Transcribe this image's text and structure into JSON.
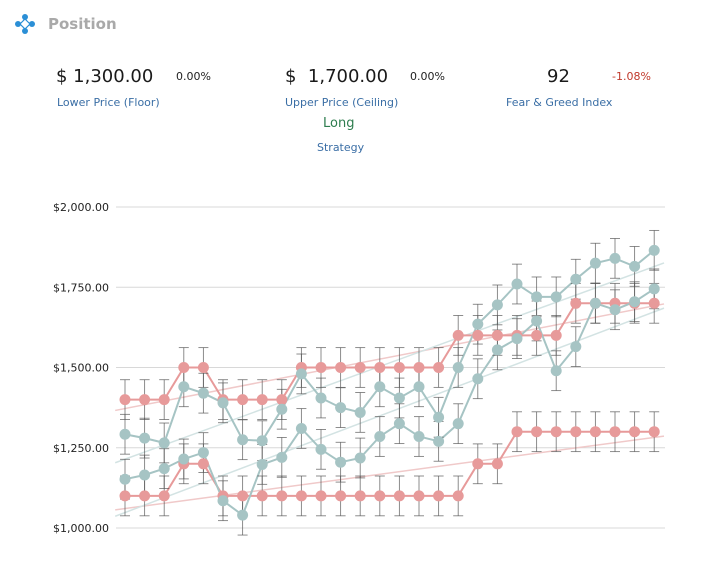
{
  "header": {
    "title": "Position",
    "logo_icon": "diamond-dots-logo-icon"
  },
  "stats": {
    "lower": {
      "value": "$ 1,300.00",
      "change": "0.00%",
      "label": "Lower Price (Floor)"
    },
    "upper": {
      "value": "$  1,700.00",
      "change": "0.00%",
      "label": "Upper Price (Ceiling)"
    },
    "fear_greed": {
      "value": "92",
      "change": "-1.08%",
      "label": "Fear & Greed Index"
    }
  },
  "strategy": {
    "value": "Long",
    "label": "Strategy"
  },
  "colors": {
    "red_series": "#e79a9a",
    "teal_series": "#a6c4c4",
    "red_trend": "#f0c9c9",
    "teal_trend": "#d3e3e3",
    "error_bar": "#555555",
    "grid": "#d8d8d8",
    "accent_blue": "#3a6ea5",
    "positive_green": "#2e7d4f",
    "negative_red": "#c0392b"
  },
  "chart_data": {
    "type": "line",
    "ylim": [
      1000,
      2000
    ],
    "yticks": [
      "$1,000.00",
      "$1,250.00",
      "$1,500.00",
      "$1,750.00",
      "$2,000.00"
    ],
    "ytick_values": [
      1000,
      1250,
      1500,
      1750,
      2000
    ],
    "x": [
      1,
      2,
      3,
      4,
      5,
      6,
      7,
      8,
      9,
      10,
      11,
      12,
      13,
      14,
      15,
      16,
      17,
      18,
      19,
      20,
      21,
      22,
      23,
      24,
      25,
      26,
      27,
      28
    ],
    "error": 62,
    "series": [
      {
        "color": "red",
        "values": [
          1400,
          1400,
          1400,
          1500,
          1500,
          1400,
          1400,
          1400,
          1400,
          1500,
          1500,
          1500,
          1500,
          1500,
          1500,
          1500,
          1500,
          1600,
          1600,
          1600,
          1600,
          1600,
          1600,
          1700,
          1700,
          1700,
          1700,
          1700
        ]
      },
      {
        "color": "red",
        "values": [
          1100,
          1100,
          1100,
          1200,
          1200,
          1100,
          1100,
          1100,
          1100,
          1100,
          1100,
          1100,
          1100,
          1100,
          1100,
          1100,
          1100,
          1100,
          1200,
          1200,
          1300,
          1300,
          1300,
          1300,
          1300,
          1300,
          1300,
          1300
        ]
      },
      {
        "color": "teal",
        "values": [
          1292,
          1280,
          1265,
          1440,
          1420,
          1390,
          1275,
          1272,
          1370,
          1480,
          1405,
          1375,
          1360,
          1440,
          1405,
          1440,
          1345,
          1500,
          1635,
          1695,
          1760,
          1720,
          1720,
          1775,
          1825,
          1840,
          1815,
          1865
        ]
      },
      {
        "color": "teal",
        "values": [
          1152,
          1165,
          1185,
          1215,
          1235,
          1085,
          1040,
          1198,
          1220,
          1310,
          1245,
          1205,
          1218,
          1285,
          1325,
          1285,
          1270,
          1325,
          1465,
          1555,
          1590,
          1645,
          1490,
          1565,
          1700,
          1680,
          1705,
          1745
        ]
      }
    ]
  }
}
